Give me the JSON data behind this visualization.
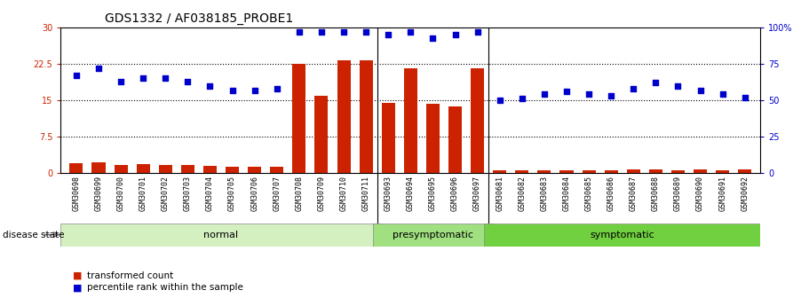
{
  "title": "GDS1332 / AF038185_PROBE1",
  "samples": [
    "GSM30698",
    "GSM30699",
    "GSM30700",
    "GSM30701",
    "GSM30702",
    "GSM30703",
    "GSM30704",
    "GSM30705",
    "GSM30706",
    "GSM30707",
    "GSM30708",
    "GSM30709",
    "GSM30710",
    "GSM30711",
    "GSM30693",
    "GSM30694",
    "GSM30695",
    "GSM30696",
    "GSM30697",
    "GSM30681",
    "GSM30682",
    "GSM30683",
    "GSM30684",
    "GSM30685",
    "GSM30686",
    "GSM30687",
    "GSM30688",
    "GSM30689",
    "GSM30690",
    "GSM30691",
    "GSM30692"
  ],
  "transformed_count": [
    2.0,
    2.2,
    1.7,
    1.9,
    1.7,
    1.6,
    1.4,
    1.2,
    1.3,
    1.2,
    22.5,
    16.0,
    23.2,
    23.2,
    14.5,
    21.5,
    14.3,
    13.7,
    21.5,
    0.5,
    0.6,
    0.5,
    0.6,
    0.5,
    0.5,
    0.7,
    0.8,
    0.6,
    0.7,
    0.6,
    0.8
  ],
  "percentile_rank": [
    67,
    72,
    63,
    65,
    65,
    63,
    60,
    57,
    57,
    58,
    97,
    97,
    97,
    97,
    95,
    97,
    93,
    95,
    97,
    50,
    51,
    54,
    56,
    54,
    53,
    58,
    62,
    60,
    57,
    54,
    52
  ],
  "group_boundaries": [
    {
      "label": "normal",
      "start": 0,
      "end": 14,
      "color": "#d4f0c0"
    },
    {
      "label": "presymptomatic",
      "start": 14,
      "end": 19,
      "color": "#a0e080"
    },
    {
      "label": "symptomatic",
      "start": 19,
      "end": 31,
      "color": "#70d040"
    }
  ],
  "bar_color": "#cc2200",
  "dot_color": "#0000cc",
  "left_ylim": [
    0,
    30
  ],
  "right_ylim": [
    0,
    100
  ],
  "left_yticks": [
    0,
    7.5,
    15,
    22.5,
    30
  ],
  "right_yticks": [
    0,
    25,
    50,
    75,
    100
  ],
  "right_yticklabels": [
    "0",
    "25",
    "50",
    "75",
    "100%"
  ],
  "left_yticklabels": [
    "0",
    "7.5",
    "15",
    "22.5",
    "30"
  ],
  "hgrid_lines": [
    7.5,
    15,
    22.5
  ],
  "bg_color": "#ffffff",
  "title_fontsize": 10,
  "tick_fontsize": 7,
  "xtick_fontsize": 6,
  "disease_state_label": "disease state",
  "legend_items": [
    {
      "label": "transformed count",
      "color": "#cc2200"
    },
    {
      "label": "percentile rank within the sample",
      "color": "#0000cc"
    }
  ]
}
